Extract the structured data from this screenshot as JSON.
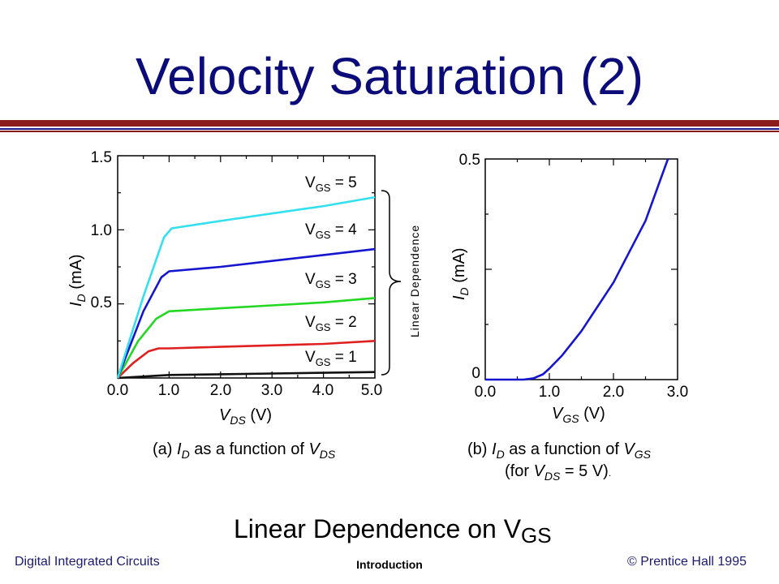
{
  "slide": {
    "title": "Velocity Saturation (2)",
    "footer_left": "Digital Integrated Circuits",
    "footer_center": "Introduction",
    "footer_right": "© Prentice Hall 1995",
    "bottom_statement": {
      "text": "Linear Dependence on V",
      "sub": "GS"
    },
    "colors": {
      "title": "#0b0b7a",
      "rule_red": "#8b1a1a",
      "rule_blue": "#1a1a8b"
    }
  },
  "chart_data": [
    {
      "type": "line",
      "xlabel": {
        "main": "V",
        "sub": "DS",
        "unit": " (V)"
      },
      "ylabel": {
        "main": "I",
        "sub": "D",
        "unit": " (mA)"
      },
      "xlim": [
        0,
        5
      ],
      "ylim": [
        0,
        1.5
      ],
      "x_ticks": [
        "0.0",
        "1.0",
        "2.0",
        "3.0",
        "4.0",
        "5.0"
      ],
      "y_ticks": [
        "0.5",
        "1.0",
        "1.5"
      ],
      "caption": {
        "a": "(a) ",
        "i": "I",
        "isub": "D",
        "mid": " as a function of ",
        "v": "V",
        "vsub": "DS"
      },
      "bracket_label": "Linear Dependence",
      "series": [
        {
          "name": "V_GS = 1",
          "label": {
            "main": "V",
            "sub": "GS",
            "rest": " = 1"
          },
          "color": "#111111",
          "x": [
            0,
            0.5,
            1.0,
            2.0,
            3.0,
            4.0,
            5.0
          ],
          "y": [
            0,
            0.01,
            0.02,
            0.025,
            0.03,
            0.035,
            0.04
          ]
        },
        {
          "name": "V_GS = 2",
          "label": {
            "main": "V",
            "sub": "GS",
            "rest": " = 2"
          },
          "color": "#e02020",
          "x": [
            0,
            0.3,
            0.6,
            0.8,
            1.0,
            2.0,
            3.0,
            4.0,
            5.0
          ],
          "y": [
            0,
            0.1,
            0.18,
            0.2,
            0.2,
            0.21,
            0.22,
            0.23,
            0.25
          ]
        },
        {
          "name": "V_GS = 3",
          "label": {
            "main": "V",
            "sub": "GS",
            "rest": " = 3"
          },
          "color": "#22d822",
          "x": [
            0,
            0.4,
            0.75,
            0.95,
            1.0,
            2.0,
            3.0,
            4.0,
            5.0
          ],
          "y": [
            0,
            0.25,
            0.4,
            0.44,
            0.45,
            0.47,
            0.49,
            0.51,
            0.54
          ]
        },
        {
          "name": "V_GS = 4",
          "label": {
            "main": "V",
            "sub": "GS",
            "rest": " = 4"
          },
          "color": "#1515d0",
          "x": [
            0,
            0.5,
            0.85,
            1.0,
            2.0,
            3.0,
            4.0,
            5.0
          ],
          "y": [
            0,
            0.45,
            0.68,
            0.72,
            0.75,
            0.79,
            0.83,
            0.87
          ]
        },
        {
          "name": "V_GS = 5",
          "label": {
            "main": "V",
            "sub": "GS",
            "rest": " = 5"
          },
          "color": "#33e0f0",
          "x": [
            0,
            0.5,
            0.9,
            1.05,
            2.0,
            3.0,
            4.0,
            5.0
          ],
          "y": [
            0,
            0.55,
            0.95,
            1.01,
            1.06,
            1.11,
            1.16,
            1.22
          ]
        }
      ]
    },
    {
      "type": "line",
      "xlabel": {
        "main": "V",
        "sub": "GS",
        "unit": " (V)"
      },
      "ylabel": {
        "main": "I",
        "sub": "D",
        "unit": " (mA)"
      },
      "xlim": [
        0,
        3
      ],
      "ylim": [
        0,
        0.5
      ],
      "x_ticks": [
        "0.0",
        "1.0",
        "2.0",
        "3.0"
      ],
      "y_ticks": [
        "0",
        "0.5"
      ],
      "caption": {
        "a": "(b) ",
        "i": "I",
        "isub": "D",
        "mid": " as a function of ",
        "v": "V",
        "vsub": "GS"
      },
      "caption2": {
        "pre": "(for ",
        "v": "V",
        "vsub": "DS",
        "post": " = 5 V)",
        "dot": "."
      },
      "series": [
        {
          "name": "I_D vs V_GS",
          "color": "#1515d0",
          "x": [
            0,
            0.6,
            0.75,
            0.9,
            1.0,
            1.2,
            1.5,
            2.0,
            2.5,
            2.85
          ],
          "y": [
            0,
            0,
            0.003,
            0.012,
            0.025,
            0.055,
            0.11,
            0.22,
            0.36,
            0.5
          ]
        }
      ]
    }
  ]
}
